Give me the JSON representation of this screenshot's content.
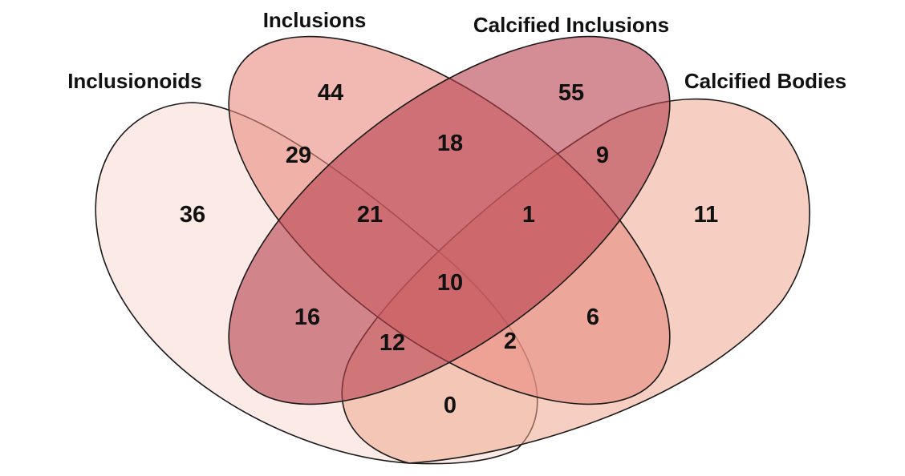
{
  "sets": [
    {
      "name": "Inclusionoids",
      "color": "#f7d8d0"
    },
    {
      "name": "Inclusions",
      "color": "#e88a7e"
    },
    {
      "name": "Calcified Inclusions",
      "color": "#b8404f"
    },
    {
      "name": "Calcified Bodies",
      "color": "#eea890"
    }
  ],
  "regions": [
    {
      "sets": [
        "Inclusionoids"
      ],
      "count": "36"
    },
    {
      "sets": [
        "Inclusions"
      ],
      "count": "44"
    },
    {
      "sets": [
        "Calcified Inclusions"
      ],
      "count": "55"
    },
    {
      "sets": [
        "Calcified Bodies"
      ],
      "count": "11"
    },
    {
      "sets": [
        "Inclusionoids",
        "Inclusions"
      ],
      "count": "29"
    },
    {
      "sets": [
        "Inclusions",
        "Calcified Inclusions"
      ],
      "count": "18"
    },
    {
      "sets": [
        "Calcified Inclusions",
        "Calcified Bodies"
      ],
      "count": "9"
    },
    {
      "sets": [
        "Inclusionoids",
        "Inclusions",
        "Calcified Inclusions"
      ],
      "count": "21"
    },
    {
      "sets": [
        "Inclusions",
        "Calcified Inclusions",
        "Calcified Bodies"
      ],
      "count": "1"
    },
    {
      "sets": [
        "Inclusionoids",
        "Inclusions",
        "Calcified Inclusions",
        "Calcified Bodies"
      ],
      "count": "10"
    },
    {
      "sets": [
        "Inclusionoids",
        "Calcified Inclusions"
      ],
      "count": "16"
    },
    {
      "sets": [
        "Inclusions",
        "Calcified Bodies"
      ],
      "count": "6"
    },
    {
      "sets": [
        "Inclusionoids",
        "Calcified Inclusions",
        "Calcified Bodies"
      ],
      "count": "12"
    },
    {
      "sets": [
        "Inclusionoids",
        "Inclusions",
        "Calcified Bodies"
      ],
      "count": "2"
    },
    {
      "sets": [
        "Inclusionoids",
        "Calcified Bodies"
      ],
      "count": "0"
    }
  ]
}
